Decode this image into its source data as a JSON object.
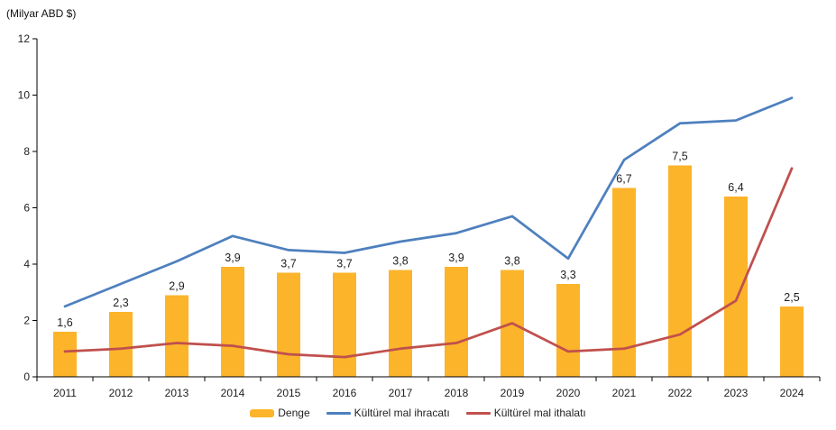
{
  "chart_data": {
    "type": "bar+line",
    "unit_label": "(Milyar ABD $)",
    "categories": [
      "2011",
      "2012",
      "2013",
      "2014",
      "2015",
      "2016",
      "2017",
      "2018",
      "2019",
      "2020",
      "2021",
      "2022",
      "2023",
      "2024"
    ],
    "series": [
      {
        "name": "Denge",
        "type": "bar",
        "color": "#FCB42A",
        "values": [
          1.6,
          2.3,
          2.9,
          3.9,
          3.7,
          3.7,
          3.8,
          3.9,
          3.8,
          3.3,
          6.7,
          7.5,
          6.4,
          2.5
        ],
        "value_labels": [
          "1,6",
          "2,3",
          "2,9",
          "3,9",
          "3,7",
          "3,7",
          "3,8",
          "3,9",
          "3,8",
          "3,3",
          "6,7",
          "7,5",
          "6,4",
          "2,5"
        ]
      },
      {
        "name": "Kültürel mal ihracatı",
        "type": "line",
        "color": "#4E80BE",
        "values": [
          2.5,
          3.3,
          4.1,
          5.0,
          4.5,
          4.4,
          4.8,
          5.1,
          5.7,
          4.2,
          7.7,
          9.0,
          9.1,
          9.9
        ]
      },
      {
        "name": "Kültürel mal ithalatı",
        "type": "line",
        "color": "#C0504D",
        "values": [
          0.9,
          1.0,
          1.2,
          1.1,
          0.8,
          0.7,
          1.0,
          1.2,
          1.9,
          0.9,
          1.0,
          1.5,
          2.7,
          7.4
        ]
      }
    ],
    "ylim": [
      0,
      12
    ],
    "yticks": [
      0,
      2,
      4,
      6,
      8,
      10,
      12
    ],
    "grid": false,
    "legend_position": "bottom",
    "axis_color": "#000000",
    "text_color": "#1f1f1f"
  }
}
